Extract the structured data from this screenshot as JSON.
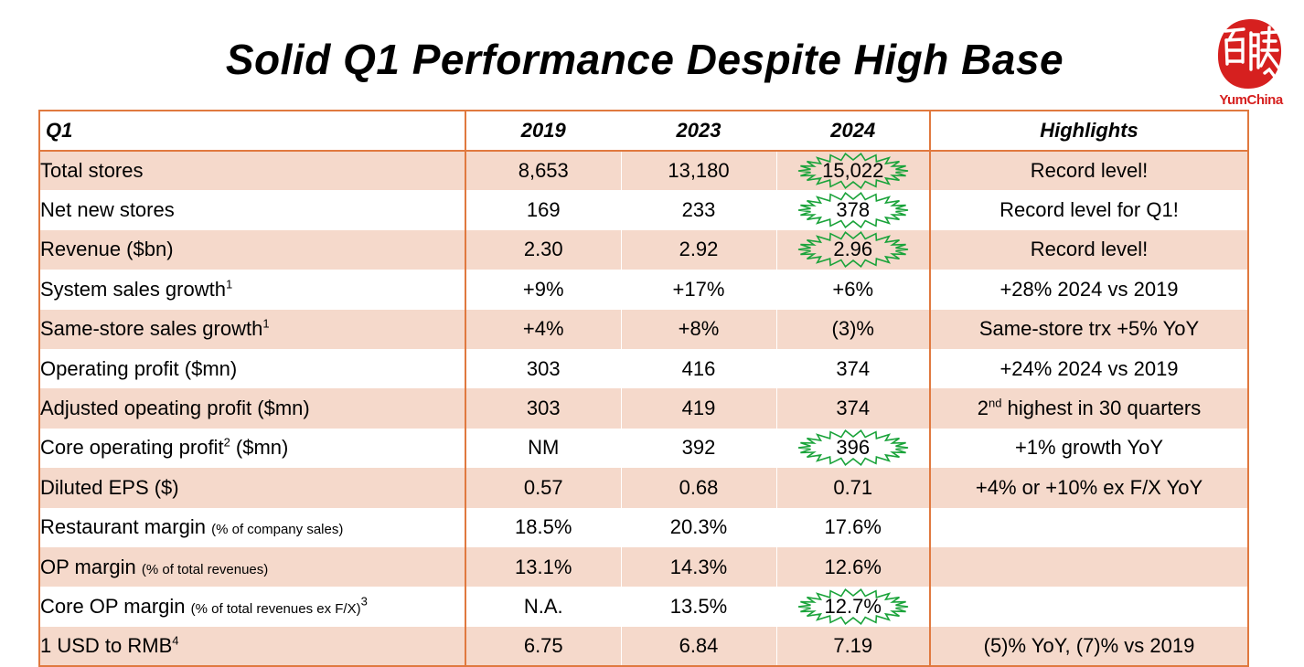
{
  "title": "Solid Q1 Performance Despite High Base",
  "logo": {
    "text": "YumChina",
    "seal_text": "百勝",
    "color": "#d6201f"
  },
  "colors": {
    "border": "#e0793f",
    "shade": "#f5d9cb",
    "highlight_blue": "#2222b8",
    "negative_red": "#e3262b",
    "burst_green": "#1aa33a"
  },
  "table": {
    "headers": [
      "Q1",
      "2019",
      "2023",
      "2024",
      "Highlights"
    ],
    "rows": [
      {
        "label": "Total stores",
        "label_sup": "",
        "label_note": "",
        "y2019": "8,653",
        "y2023": "13,180",
        "y2024": "15,022",
        "highlight": "Record level!",
        "highlight_sup": "",
        "highlight_rest": "",
        "burst": true
      },
      {
        "label": "Net new stores",
        "label_sup": "",
        "label_note": "",
        "y2019": "169",
        "y2023": "233",
        "y2024": "378",
        "highlight": "Record level for Q1!",
        "highlight_sup": "",
        "highlight_rest": "",
        "burst": true
      },
      {
        "label": "Revenue ($bn)",
        "label_sup": "",
        "label_note": "",
        "y2019": "2.30",
        "y2023": "2.92",
        "y2024": "2.96",
        "highlight": "Record level!",
        "highlight_sup": "",
        "highlight_rest": "",
        "burst": true
      },
      {
        "label": "System sales growth",
        "label_sup": "1",
        "label_note": "",
        "y2019": "+9%",
        "y2023": "+17%",
        "y2024": "+6%",
        "highlight": "+28% 2024 vs 2019",
        "highlight_sup": "",
        "highlight_rest": "",
        "burst": false
      },
      {
        "label": "Same-store sales growth",
        "label_sup": "1",
        "label_note": "",
        "y2019": "+4%",
        "y2023": "+8%",
        "y2024": "(3)%",
        "highlight": "Same-store trx +5% YoY",
        "highlight_sup": "",
        "highlight_rest": "",
        "burst": false
      },
      {
        "label": "Operating profit (",
        "label_sup": "",
        "label_note": "$mn)",
        "y2019": "303",
        "y2023": "416",
        "y2024": "374",
        "highlight": "+24% 2024 vs 2019",
        "highlight_sup": "",
        "highlight_rest": "",
        "burst": false
      },
      {
        "label": "Adjusted opeating profit (",
        "label_sup": "",
        "label_note": "$mn)",
        "y2019": "303",
        "y2023": "419",
        "y2024": "374",
        "highlight": "2",
        "highlight_sup": "nd",
        "highlight_rest": " highest in 30 quarters",
        "burst": false
      },
      {
        "label": "Core operating profit",
        "label_sup": "2",
        "label_note": " ($mn)",
        "y2019": "NM",
        "y2023": "392",
        "y2024": "396",
        "highlight": "+1% growth YoY",
        "highlight_sup": "",
        "highlight_rest": "",
        "burst": true
      },
      {
        "label": "Diluted EPS ($)",
        "label_sup": "",
        "label_note": "",
        "y2019": "0.57",
        "y2023": "0.68",
        "y2024": "0.71",
        "highlight": "+4% or +10% ex F/X YoY",
        "highlight_sup": "",
        "highlight_rest": "",
        "burst": false
      },
      {
        "label": "Restaurant margin",
        "label_sup": "",
        "label_small": "(% of company sales)",
        "y2019": "18.5%",
        "y2023": "20.3%",
        "y2024": "17.6%",
        "highlight": "",
        "highlight_sup": "",
        "highlight_rest": "",
        "burst": false
      },
      {
        "label": "OP margin",
        "label_sup": "",
        "label_small": "(% of total revenues)",
        "y2019": "13.1%",
        "y2023": "14.3%",
        "y2024": "12.6%",
        "highlight": "",
        "highlight_sup": "",
        "highlight_rest": "",
        "burst": false
      },
      {
        "label": "Core OP margin",
        "label_sup": "3",
        "label_small": "(% of total revenues ex F/X)",
        "y2019": "N.A.",
        "y2023": "13.5%",
        "y2024": "12.7%",
        "highlight": "",
        "highlight_sup": "",
        "highlight_rest": "",
        "burst": true
      },
      {
        "label": "1 USD to RMB",
        "label_sup": "4",
        "label_note": "",
        "y2019": "6.75",
        "y2023": "6.84",
        "y2024": "7.19",
        "highlight": "(5)% YoY, (7)% vs 2019",
        "highlight_sup": "",
        "highlight_rest": "",
        "burst": false
      }
    ]
  }
}
